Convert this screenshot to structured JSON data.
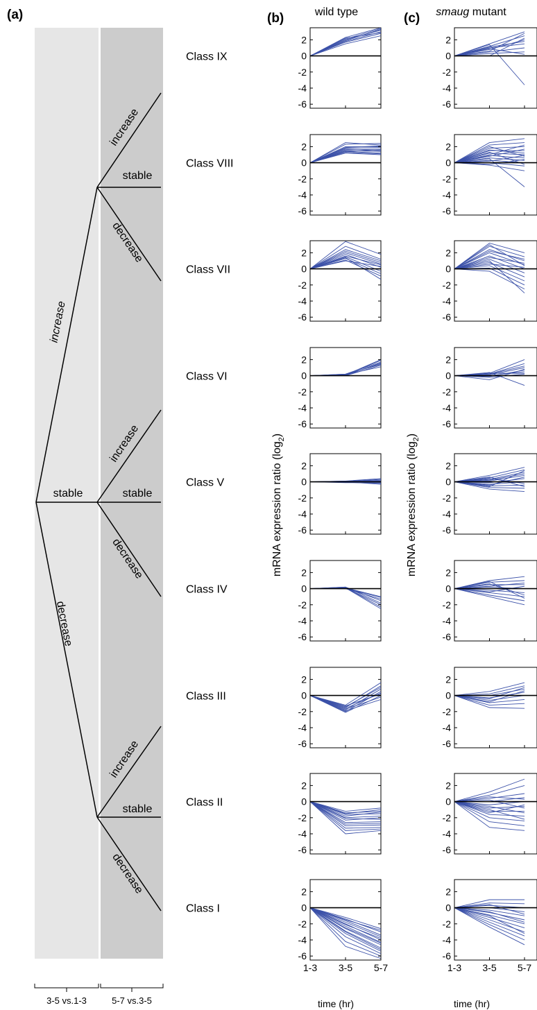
{
  "panels": {
    "a": "(a)",
    "b": "(b)",
    "c": "(c)"
  },
  "column_titles": {
    "b": "wild type",
    "c_italic": "smaug",
    "c_rest": " mutant"
  },
  "tree": {
    "first_step": {
      "increase": "increase",
      "stable": "stable",
      "decrease": "decrease"
    },
    "second_step": {
      "increase": "increase",
      "stable": "stable",
      "decrease": "decrease"
    },
    "bottom_labels": [
      "3-5 vs.1-3",
      "5-7 vs.3-5"
    ]
  },
  "classes": [
    "Class IX",
    "Class VIII",
    "Class VII",
    "Class VI",
    "Class V",
    "Class IV",
    "Class III",
    "Class II",
    "Class I"
  ],
  "colors": {
    "series": "#3a50a8",
    "zero_line": "#000000",
    "band_light": "#e6e6e6",
    "band_dark": "#cccccc"
  },
  "chart_data": {
    "type": "line",
    "x": [
      "1-3",
      "3-5",
      "5-7"
    ],
    "xlabel": "time (hr)",
    "ylabel": "mRNA expression ratio (log2)",
    "ylabel_main": "mRNA expression ratio (log",
    "ylabel_sub": "2",
    "ylabel_close": ")",
    "ylim": [
      -6.5,
      3.5
    ],
    "yticks": [
      2,
      0,
      -2,
      -4,
      -6
    ],
    "yticklabels": [
      "2",
      "0",
      "-2",
      "-4",
      "-6"
    ],
    "xticklabels": [
      "1-3",
      "3-5",
      "5-7"
    ],
    "wild_type": [
      {
        "class": "Class IX",
        "lines": [
          [
            0,
            2.3,
            3.5
          ],
          [
            0,
            2,
            3.2
          ],
          [
            0,
            1.8,
            3.0
          ],
          [
            0,
            1.7,
            2.8
          ],
          [
            0,
            1.5,
            2.5
          ],
          [
            0,
            2.1,
            3.4
          ],
          [
            0,
            1.9,
            3.3
          ],
          [
            0,
            2.2,
            2.9
          ]
        ]
      },
      {
        "class": "Class VIII",
        "lines": [
          [
            0,
            2.5,
            2.2
          ],
          [
            0,
            2.3,
            2.4
          ],
          [
            0,
            2.0,
            2.0
          ],
          [
            0,
            1.8,
            1.9
          ],
          [
            0,
            1.6,
            1.7
          ],
          [
            0,
            1.5,
            1.4
          ],
          [
            0,
            1.4,
            1.2
          ],
          [
            0,
            1.3,
            1.1
          ],
          [
            0,
            1.2,
            1.0
          ],
          [
            0,
            1.7,
            1.5
          ],
          [
            0,
            1.9,
            2.1
          ],
          [
            0,
            1.4,
            1.6
          ]
        ]
      },
      {
        "class": "Class VII",
        "lines": [
          [
            0,
            3.4,
            1.8
          ],
          [
            0,
            2.8,
            1.2
          ],
          [
            0,
            2.4,
            1.0
          ],
          [
            0,
            2.0,
            0.6
          ],
          [
            0,
            1.8,
            0.2
          ],
          [
            0,
            1.5,
            -0.3
          ],
          [
            0,
            1.3,
            -0.6
          ],
          [
            0,
            1.1,
            -0.9
          ],
          [
            0,
            1.0,
            0.3
          ],
          [
            0,
            1.6,
            0.5
          ],
          [
            0,
            2.2,
            0.8
          ],
          [
            0,
            1.4,
            -1.3
          ]
        ]
      },
      {
        "class": "Class VI",
        "lines": [
          [
            0,
            0.1,
            1.9
          ],
          [
            0,
            0.2,
            1.7
          ],
          [
            0,
            0.1,
            1.5
          ],
          [
            0,
            0.0,
            1.3
          ],
          [
            0,
            0.15,
            1.1
          ],
          [
            0,
            0.05,
            1.6
          ],
          [
            0,
            0.1,
            2.0
          ],
          [
            0,
            0.2,
            1.4
          ]
        ]
      },
      {
        "class": "Class V",
        "lines": [
          [
            0,
            0.1,
            0.4
          ],
          [
            0,
            0.05,
            0.2
          ],
          [
            0,
            0.0,
            0.0
          ],
          [
            0,
            -0.05,
            -0.2
          ],
          [
            0,
            0.1,
            0.1
          ],
          [
            0,
            0.0,
            -0.3
          ],
          [
            0,
            0.05,
            0.3
          ],
          [
            0,
            -0.1,
            -0.1
          ]
        ]
      },
      {
        "class": "Class IV",
        "lines": [
          [
            0,
            0.1,
            -1.0
          ],
          [
            0,
            0.2,
            -1.5
          ],
          [
            0,
            0.1,
            -2.0
          ],
          [
            0,
            0.0,
            -1.3
          ],
          [
            0,
            0.15,
            -2.3
          ],
          [
            0,
            0.2,
            -1.8
          ],
          [
            0,
            0.05,
            -1.1
          ],
          [
            0,
            0.1,
            -2.5
          ]
        ]
      },
      {
        "class": "Class III",
        "lines": [
          [
            0,
            -1.2,
            1.6
          ],
          [
            0,
            -1.5,
            1.2
          ],
          [
            0,
            -1.8,
            0.8
          ],
          [
            0,
            -2.0,
            0.5
          ],
          [
            0,
            -1.3,
            0.2
          ],
          [
            0,
            -1.7,
            -0.2
          ],
          [
            0,
            -2.1,
            0.0
          ],
          [
            0,
            -1.4,
            1.0
          ],
          [
            0,
            -1.6,
            0.3
          ],
          [
            0,
            -1.9,
            -0.5
          ]
        ]
      },
      {
        "class": "Class II",
        "lines": [
          [
            0,
            -1.2,
            -0.8
          ],
          [
            0,
            -1.5,
            -1.0
          ],
          [
            0,
            -1.8,
            -1.3
          ],
          [
            0,
            -2.0,
            -1.8
          ],
          [
            0,
            -2.3,
            -2.0
          ],
          [
            0,
            -2.6,
            -2.5
          ],
          [
            0,
            -3.0,
            -2.9
          ],
          [
            0,
            -3.3,
            -3.2
          ],
          [
            0,
            -3.6,
            -3.4
          ],
          [
            0,
            -4.0,
            -3.6
          ],
          [
            0,
            -1.4,
            -1.2
          ],
          [
            0,
            -1.6,
            -1.5
          ],
          [
            0,
            -2.1,
            -2.2
          ],
          [
            0,
            -2.8,
            -2.7
          ]
        ]
      },
      {
        "class": "Class I",
        "lines": [
          [
            0,
            -1.2,
            -2.6
          ],
          [
            0,
            -1.4,
            -3.0
          ],
          [
            0,
            -1.6,
            -3.4
          ],
          [
            0,
            -1.8,
            -3.6
          ],
          [
            0,
            -2.0,
            -4.0
          ],
          [
            0,
            -2.3,
            -4.3
          ],
          [
            0,
            -2.6,
            -4.6
          ],
          [
            0,
            -2.9,
            -5.0
          ],
          [
            0,
            -3.2,
            -5.4
          ],
          [
            0,
            -3.6,
            -5.7
          ],
          [
            0,
            -4.2,
            -6.0
          ],
          [
            0,
            -4.8,
            -6.3
          ],
          [
            0,
            -1.5,
            -2.8
          ],
          [
            0,
            -2.1,
            -3.8
          ],
          [
            0,
            -2.5,
            -4.4
          ],
          [
            0,
            -3.0,
            -5.2
          ]
        ]
      }
    ],
    "smaug_mutant": [
      {
        "class": "Class IX",
        "lines": [
          [
            0,
            1.5,
            3.0
          ],
          [
            0,
            1.2,
            2.5
          ],
          [
            0,
            0.8,
            2.0
          ],
          [
            0,
            1.0,
            1.5
          ],
          [
            0,
            0.5,
            1.0
          ],
          [
            0,
            0.3,
            0.5
          ],
          [
            0,
            0.0,
            2.2
          ],
          [
            0,
            1.4,
            -3.6
          ],
          [
            0,
            0.6,
            2.8
          ],
          [
            0,
            0.9,
            0.2
          ],
          [
            0,
            1.1,
            1.8
          ]
        ]
      },
      {
        "class": "Class VIII",
        "lines": [
          [
            0,
            2.5,
            3.0
          ],
          [
            0,
            2.2,
            2.5
          ],
          [
            0,
            1.8,
            2.0
          ],
          [
            0,
            1.5,
            1.5
          ],
          [
            0,
            1.2,
            1.0
          ],
          [
            0,
            0.9,
            0.6
          ],
          [
            0,
            0.6,
            0.3
          ],
          [
            0,
            0.3,
            0.0
          ],
          [
            0,
            0.0,
            -0.4
          ],
          [
            0,
            -0.3,
            -1.0
          ],
          [
            0,
            0.5,
            -3.0
          ],
          [
            0,
            1.0,
            2.2
          ],
          [
            0,
            1.6,
            1.2
          ],
          [
            0,
            0.8,
            1.7
          ],
          [
            0,
            2.0,
            0.8
          ],
          [
            0,
            0.2,
            0.9
          ],
          [
            0,
            -0.2,
            0.4
          ],
          [
            0,
            1.3,
            -0.2
          ]
        ]
      },
      {
        "class": "Class VII",
        "lines": [
          [
            0,
            3.2,
            2.0
          ],
          [
            0,
            2.8,
            1.5
          ],
          [
            0,
            2.4,
            1.0
          ],
          [
            0,
            2.0,
            0.5
          ],
          [
            0,
            1.6,
            0.0
          ],
          [
            0,
            1.2,
            -0.5
          ],
          [
            0,
            0.8,
            -1.0
          ],
          [
            0,
            0.4,
            -1.5
          ],
          [
            0,
            0.1,
            -2.0
          ],
          [
            0,
            -0.3,
            -2.5
          ],
          [
            0,
            1.0,
            -3.0
          ],
          [
            0,
            2.2,
            1.2
          ],
          [
            0,
            1.4,
            0.7
          ],
          [
            0,
            0.6,
            0.2
          ],
          [
            0,
            3.0,
            0.4
          ]
        ]
      },
      {
        "class": "Class VI",
        "lines": [
          [
            0,
            0.3,
            2.0
          ],
          [
            0,
            0.2,
            1.5
          ],
          [
            0,
            0.1,
            1.0
          ],
          [
            0,
            0.0,
            0.5
          ],
          [
            0,
            -0.2,
            0.2
          ],
          [
            0,
            -0.5,
            0.8
          ],
          [
            0,
            0.4,
            -1.2
          ],
          [
            0,
            0.2,
            1.2
          ],
          [
            0,
            -0.1,
            0.7
          ],
          [
            0,
            0.3,
            0.3
          ]
        ]
      },
      {
        "class": "Class V",
        "lines": [
          [
            0,
            0.8,
            1.8
          ],
          [
            0,
            0.5,
            1.5
          ],
          [
            0,
            0.3,
            1.2
          ],
          [
            0,
            0.1,
            0.8
          ],
          [
            0,
            -0.1,
            0.4
          ],
          [
            0,
            -0.3,
            0.0
          ],
          [
            0,
            -0.5,
            -0.4
          ],
          [
            0,
            -0.7,
            -0.8
          ],
          [
            0,
            -0.9,
            -1.2
          ],
          [
            0,
            0.6,
            -0.6
          ],
          [
            0,
            0.2,
            1.0
          ],
          [
            0,
            -0.4,
            0.6
          ],
          [
            0,
            0.4,
            -0.2
          ],
          [
            0,
            -0.6,
            1.4
          ]
        ]
      },
      {
        "class": "Class IV",
        "lines": [
          [
            0,
            1.0,
            1.5
          ],
          [
            0,
            0.8,
            1.0
          ],
          [
            0,
            0.5,
            0.5
          ],
          [
            0,
            0.2,
            0.0
          ],
          [
            0,
            -0.2,
            -0.5
          ],
          [
            0,
            -0.5,
            -1.0
          ],
          [
            0,
            -0.8,
            -1.5
          ],
          [
            0,
            -1.0,
            -2.0
          ],
          [
            0,
            0.6,
            -0.8
          ],
          [
            0,
            0.3,
            0.7
          ],
          [
            0,
            -0.4,
            0.3
          ],
          [
            0,
            0.9,
            -1.2
          ]
        ]
      },
      {
        "class": "Class III",
        "lines": [
          [
            0,
            0.5,
            1.6
          ],
          [
            0,
            0.2,
            1.2
          ],
          [
            0,
            0.0,
            0.8
          ],
          [
            0,
            -0.3,
            0.4
          ],
          [
            0,
            -0.6,
            0.0
          ],
          [
            0,
            -0.9,
            -0.5
          ],
          [
            0,
            -1.2,
            -1.0
          ],
          [
            0,
            -1.5,
            -1.6
          ],
          [
            0,
            -0.4,
            1.0
          ],
          [
            0,
            -0.8,
            0.6
          ]
        ]
      },
      {
        "class": "Class II",
        "lines": [
          [
            0,
            1.2,
            2.8
          ],
          [
            0,
            0.8,
            2.0
          ],
          [
            0,
            0.4,
            1.0
          ],
          [
            0,
            0.0,
            0.5
          ],
          [
            0,
            -0.4,
            0.0
          ],
          [
            0,
            -0.8,
            -0.6
          ],
          [
            0,
            -1.2,
            -1.2
          ],
          [
            0,
            -1.6,
            -1.8
          ],
          [
            0,
            -2.0,
            -2.4
          ],
          [
            0,
            -2.5,
            -3.0
          ],
          [
            0,
            -3.2,
            -3.6
          ],
          [
            0,
            -1.0,
            -2.2
          ],
          [
            0,
            -0.6,
            -1.4
          ],
          [
            0,
            0.2,
            -0.8
          ],
          [
            0,
            -1.4,
            -0.4
          ],
          [
            0,
            0.6,
            0.3
          ]
        ]
      },
      {
        "class": "Class I",
        "lines": [
          [
            0,
            1.0,
            1.0
          ],
          [
            0,
            0.6,
            0.5
          ],
          [
            0,
            0.3,
            0.0
          ],
          [
            0,
            0.0,
            -0.5
          ],
          [
            0,
            -0.3,
            -1.0
          ],
          [
            0,
            -0.6,
            -1.5
          ],
          [
            0,
            -0.9,
            -2.0
          ],
          [
            0,
            -1.2,
            -2.5
          ],
          [
            0,
            -1.5,
            -3.0
          ],
          [
            0,
            -1.8,
            -3.5
          ],
          [
            0,
            -2.1,
            -4.0
          ],
          [
            0,
            -2.4,
            -4.6
          ],
          [
            0,
            0.4,
            -0.8
          ],
          [
            0,
            -0.5,
            -1.8
          ],
          [
            0,
            -1.0,
            -3.2
          ]
        ]
      }
    ]
  }
}
